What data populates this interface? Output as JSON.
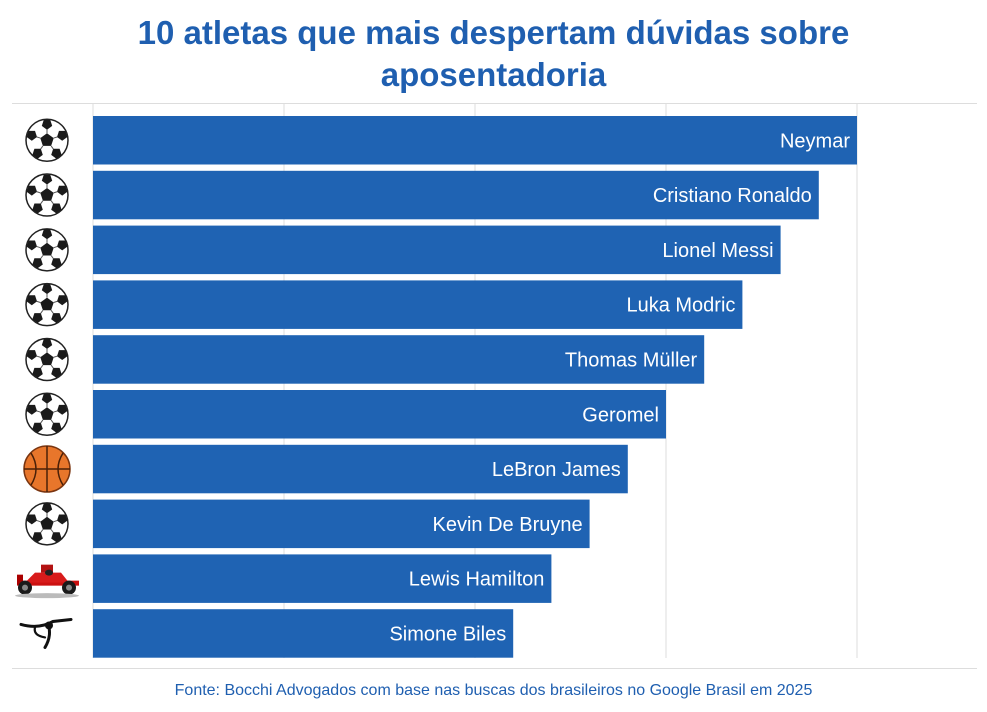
{
  "title_line1": "10 atletas que mais despertam dúvidas sobre",
  "title_line2": "aposentadoria",
  "source": "Fonte: Bocchi Advogados com base nas buscas dos brasileiros no Google Brasil em 2025",
  "colors": {
    "bar": "#1f63b3",
    "title": "#1f5fb0",
    "grid": "#dddddd"
  },
  "chart_data": {
    "type": "bar",
    "orientation": "horizontal",
    "title": "10 atletas que mais despertam dúvidas sobre aposentadoria",
    "categories": [
      "Neymar",
      "Cristiano Ronaldo",
      "Lionel Messi",
      "Luka Modric",
      "Thomas Müller",
      "Geromel",
      "LeBron James",
      "Kevin De Bruyne",
      "Lewis Hamilton",
      "Simone Biles"
    ],
    "values": [
      10,
      9.5,
      9,
      8.5,
      8,
      7.5,
      7,
      6.5,
      6,
      5.5
    ],
    "icons": [
      "soccer-ball-icon",
      "soccer-ball-icon",
      "soccer-ball-icon",
      "soccer-ball-icon",
      "soccer-ball-icon",
      "soccer-ball-icon",
      "basketball-icon",
      "soccer-ball-icon",
      "formula1-car-icon",
      "gymnast-icon"
    ],
    "xlim": [
      0,
      10
    ],
    "gridlines": [
      2.5,
      5,
      7.5,
      10
    ],
    "tick_labels_visible": false,
    "grid": true,
    "legend": "none"
  }
}
